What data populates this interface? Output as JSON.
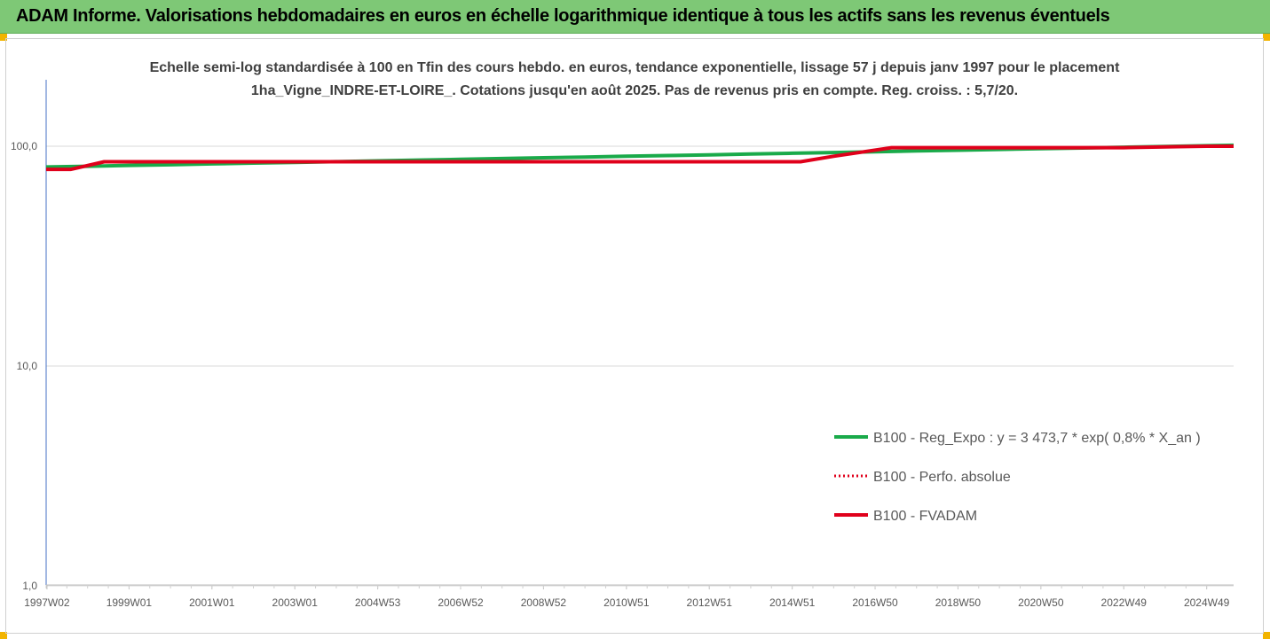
{
  "banner": {
    "title": "ADAM Informe. Valorisations hebdomadaires en euros en échelle logarithmique identique à tous les actifs sans les revenus éventuels"
  },
  "colors": {
    "banner": "#7ec876",
    "reg_expo": "#1aaa4a",
    "perfo": "#e0001b",
    "fvadam": "#e0001b",
    "accent_corner": "#f2b400"
  },
  "chart_data": {
    "type": "line",
    "title": "Echelle semi-log standardisée à 100 en Tfin des cours hebdo. en euros, tendance exponentielle, lissage 57 j depuis janv 1997 pour le placement 1ha_Vigne_INDRE-ET-LOIRE_. Cotations jusqu'en août 2025. Pas de revenus pris en compte. Reg. croiss. : 5,7/20.",
    "y_scale": "log",
    "ylim": [
      1,
      200
    ],
    "xlim": [
      1997.0,
      2025.65
    ],
    "y_ticks": [
      {
        "value": 1,
        "label": "1,0"
      },
      {
        "value": 10,
        "label": "10,0"
      },
      {
        "value": 100,
        "label": "100,0"
      }
    ],
    "x_ticks": [
      {
        "value": 1997.02,
        "label": "1997W02"
      },
      {
        "value": 1999.0,
        "label": "1999W01"
      },
      {
        "value": 2001.0,
        "label": "2001W01"
      },
      {
        "value": 2003.0,
        "label": "2003W01"
      },
      {
        "value": 2005.0,
        "label": "2004W53"
      },
      {
        "value": 2007.0,
        "label": "2006W52"
      },
      {
        "value": 2009.0,
        "label": "2008W52"
      },
      {
        "value": 2011.0,
        "label": "2010W51"
      },
      {
        "value": 2013.0,
        "label": "2012W51"
      },
      {
        "value": 2015.0,
        "label": "2014W51"
      },
      {
        "value": 2017.0,
        "label": "2016W50"
      },
      {
        "value": 2019.0,
        "label": "2018W50"
      },
      {
        "value": 2021.0,
        "label": "2020W50"
      },
      {
        "value": 2023.0,
        "label": "2022W49"
      },
      {
        "value": 2025.0,
        "label": "2024W49"
      }
    ],
    "grid": "horizontal",
    "legend_position": "right",
    "series": [
      {
        "name": "B100 - Reg_Expo : y = 3 473,7 * exp( 0,8% *  X_an )",
        "style": "solid-green",
        "points": [
          [
            1997.0,
            80.5
          ],
          [
            1998.0,
            81.1
          ],
          [
            1999.0,
            81.8
          ],
          [
            2000.0,
            82.4
          ],
          [
            2001.0,
            83.1
          ],
          [
            2002.0,
            83.8
          ],
          [
            2003.0,
            84.4
          ],
          [
            2004.0,
            85.1
          ],
          [
            2005.0,
            85.8
          ],
          [
            2006.0,
            86.5
          ],
          [
            2007.0,
            87.2
          ],
          [
            2008.0,
            87.9
          ],
          [
            2009.0,
            88.6
          ],
          [
            2010.0,
            89.3
          ],
          [
            2011.0,
            90.0
          ],
          [
            2012.0,
            90.7
          ],
          [
            2013.0,
            91.4
          ],
          [
            2014.0,
            92.2
          ],
          [
            2015.0,
            92.9
          ],
          [
            2016.0,
            93.6
          ],
          [
            2017.0,
            94.4
          ],
          [
            2018.0,
            95.2
          ],
          [
            2019.0,
            95.9
          ],
          [
            2020.0,
            96.7
          ],
          [
            2021.0,
            97.5
          ],
          [
            2022.0,
            98.2
          ],
          [
            2023.0,
            99.0
          ],
          [
            2024.0,
            99.8
          ],
          [
            2025.0,
            100.6
          ],
          [
            2025.65,
            101.0
          ]
        ]
      },
      {
        "name": "B100 - Perfo. absolue",
        "style": "dotted-red",
        "points": [
          [
            1997.0,
            78.5
          ],
          [
            1997.6,
            78.5
          ],
          [
            1998.4,
            85.0
          ],
          [
            2004.5,
            85.0
          ],
          [
            2006.0,
            85.0
          ],
          [
            2015.2,
            85.0
          ],
          [
            2016.0,
            90.0
          ],
          [
            2017.4,
            98.5
          ],
          [
            2023.0,
            98.5
          ],
          [
            2024.3,
            99.5
          ],
          [
            2025.0,
            100.0
          ],
          [
            2025.65,
            100.0
          ]
        ]
      },
      {
        "name": "B100 - FVADAM",
        "style": "solid-red",
        "points": [
          [
            1997.0,
            78.5
          ],
          [
            1997.6,
            78.5
          ],
          [
            1998.4,
            85.0
          ],
          [
            2004.5,
            85.0
          ],
          [
            2006.0,
            85.0
          ],
          [
            2015.2,
            85.0
          ],
          [
            2016.0,
            90.0
          ],
          [
            2017.4,
            98.5
          ],
          [
            2023.0,
            98.5
          ],
          [
            2024.3,
            99.5
          ],
          [
            2025.0,
            100.0
          ],
          [
            2025.65,
            100.0
          ]
        ]
      }
    ]
  }
}
